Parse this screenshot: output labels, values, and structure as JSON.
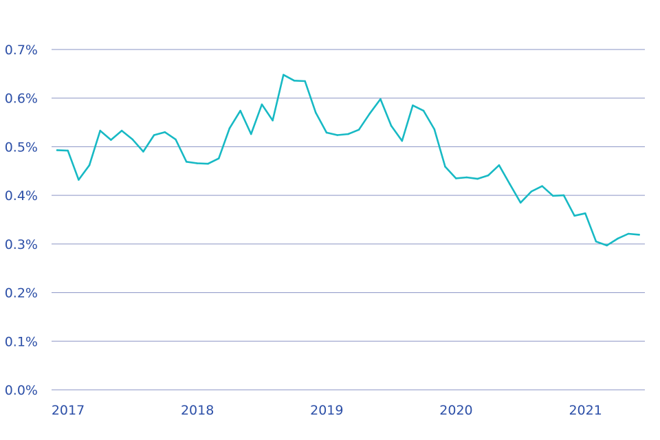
{
  "chart_data": {
    "type": "line",
    "title": "",
    "xlabel": "",
    "ylabel": "",
    "x_ticks": [
      "2017",
      "2018",
      "2019",
      "2020",
      "2021"
    ],
    "y_ticks": [
      "0.0%",
      "0.1%",
      "0.2%",
      "0.3%",
      "0.4%",
      "0.5%",
      "0.6%",
      "0.7%"
    ],
    "ylim": [
      0,
      0.7
    ],
    "xlim": [
      "2017-01",
      "2021-07"
    ],
    "grid": "horizontal",
    "series": [
      {
        "x": [
          "2017-01",
          "2017-02",
          "2017-03",
          "2017-04",
          "2017-05",
          "2017-06",
          "2017-07",
          "2017-08",
          "2017-09",
          "2017-10",
          "2017-11",
          "2017-12",
          "2018-01",
          "2018-02",
          "2018-03",
          "2018-04",
          "2018-05",
          "2018-06",
          "2018-07",
          "2018-08",
          "2018-09",
          "2018-10",
          "2018-11",
          "2018-12",
          "2019-01",
          "2019-02",
          "2019-03",
          "2019-04",
          "2019-05",
          "2019-06",
          "2019-07",
          "2019-08",
          "2019-09",
          "2019-10",
          "2019-11",
          "2019-12",
          "2020-01",
          "2020-02",
          "2020-03",
          "2020-04",
          "2020-05",
          "2020-06",
          "2020-07",
          "2020-08",
          "2020-09",
          "2020-10",
          "2020-11",
          "2020-12",
          "2021-01",
          "2021-02",
          "2021-03",
          "2021-04",
          "2021-05",
          "2021-06",
          "2021-07"
        ],
        "values": [
          0.493,
          0.492,
          0.432,
          0.462,
          0.533,
          0.514,
          0.533,
          0.515,
          0.49,
          0.524,
          0.53,
          0.515,
          0.469,
          0.466,
          0.465,
          0.476,
          0.538,
          0.574,
          0.526,
          0.587,
          0.554,
          0.648,
          0.636,
          0.635,
          0.57,
          0.529,
          0.524,
          0.526,
          0.535,
          0.568,
          0.598,
          0.543,
          0.512,
          0.585,
          0.574,
          0.536,
          0.459,
          0.435,
          0.437,
          0.434,
          0.441,
          0.462,
          0.423,
          0.385,
          0.408,
          0.419,
          0.399,
          0.4,
          0.358,
          0.363,
          0.305,
          0.297,
          0.311,
          0.321,
          0.319
        ]
      }
    ],
    "colors": {
      "line": "#17b9c4",
      "grid": "#8a93c4",
      "tick_text": "#2c4fa7"
    }
  }
}
